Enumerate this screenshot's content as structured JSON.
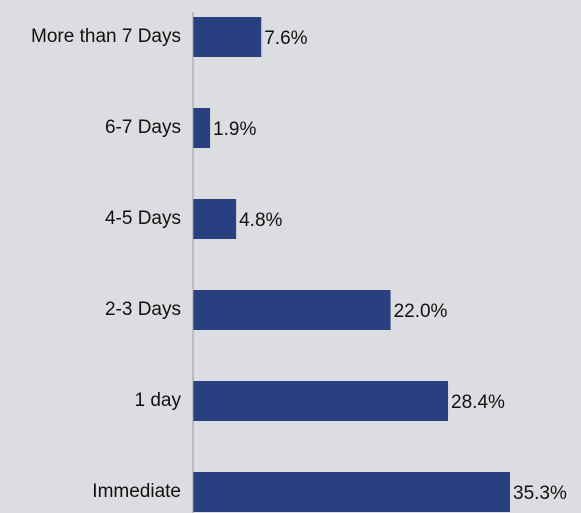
{
  "chart_data": {
    "type": "bar",
    "orientation": "horizontal",
    "title": "",
    "xlabel": "",
    "ylabel": "",
    "categories": [
      "More than 7 Days",
      "6-7 Days",
      "4-5 Days",
      "2-3 Days",
      "1 day",
      "Immediate"
    ],
    "values": [
      7.6,
      1.9,
      4.8,
      22.0,
      28.4,
      35.3
    ],
    "value_labels": [
      "7.6%",
      "1.9%",
      "4.8%",
      "22.0%",
      "28.4%",
      "35.3%"
    ],
    "unit": "%",
    "xlim": [
      0,
      35.3
    ],
    "grid": false,
    "legend": "none",
    "colors": {
      "bar": "#283f80",
      "background": "#dcdde0",
      "axis": "#9a9ca0",
      "text": "#111111"
    }
  }
}
